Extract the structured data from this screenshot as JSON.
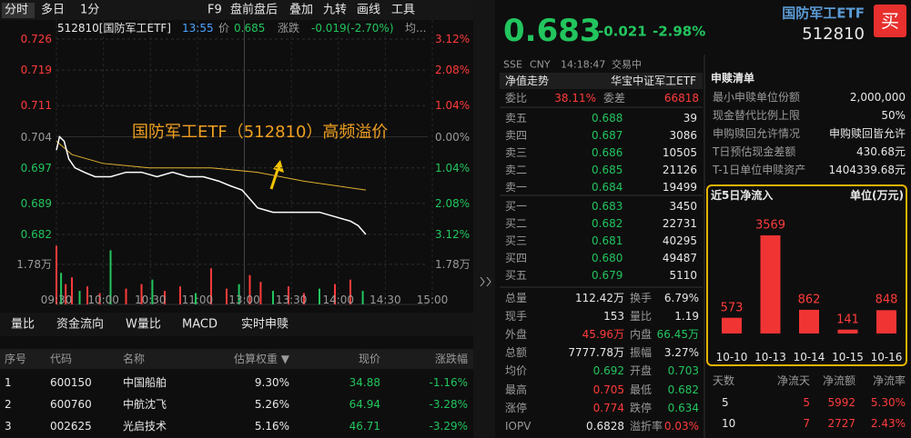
{
  "toolbar": {
    "tabs": [
      "分时",
      "多日",
      "1分"
    ],
    "items": [
      "F9",
      "盘前盘后",
      "叠加",
      "九转",
      "画线",
      "工具"
    ]
  },
  "chart": {
    "info": [
      "512810[国防军工ETF]",
      "13:55",
      "价",
      "0.685",
      "涨跌",
      "-0.019(-2.70%)",
      "均..."
    ],
    "ylim": [
      0.682,
      0.726
    ],
    "yticks": [
      0.726,
      0.719,
      0.711,
      0.704,
      0.697,
      0.689,
      0.682
    ],
    "pct_ticks": [
      "3.12%",
      "2.08%",
      "1.04%",
      "0.00%",
      "1.04%",
      "2.08%",
      "3.12%"
    ],
    "xlim": [
      0,
      240
    ],
    "xticks": [
      "09:30",
      "10:00",
      "10:30",
      "11:00",
      "13:00",
      "13:30",
      "14:00",
      "14:30",
      "15:00"
    ],
    "annotation": "国防军工ETF（512810）高频溢价",
    "price_line": {
      "x": [
        0,
        2,
        5,
        8,
        12,
        18,
        25,
        35,
        45,
        55,
        65,
        75,
        85,
        95,
        105,
        112,
        120,
        125,
        130,
        140,
        150,
        160,
        170,
        180,
        190,
        195,
        200
      ],
      "values": [
        0.701,
        0.704,
        0.703,
        0.699,
        0.697,
        0.696,
        0.695,
        0.695,
        0.696,
        0.696,
        0.695,
        0.696,
        0.695,
        0.695,
        0.694,
        0.693,
        0.692,
        0.69,
        0.688,
        0.687,
        0.687,
        0.687,
        0.687,
        0.686,
        0.685,
        0.684,
        0.682
      ]
    },
    "avg_line": {
      "x": [
        0,
        10,
        30,
        60,
        100,
        130,
        160,
        200
      ],
      "values": [
        0.703,
        0.7,
        0.698,
        0.697,
        0.697,
        0.696,
        0.694,
        0.692
      ]
    },
    "volume": {
      "ylim": [
        0,
        2.7
      ],
      "yticks": [
        {
          "value": 1.78,
          "label": "1.78万"
        }
      ],
      "x": [
        0,
        3,
        6,
        10,
        15,
        20,
        28,
        35,
        45,
        55,
        62,
        70,
        80,
        90,
        100,
        110,
        118,
        125,
        132,
        140,
        150,
        160,
        170,
        180,
        190,
        198
      ],
      "values": [
        2.6,
        1.4,
        0.9,
        1.2,
        0.6,
        0.8,
        0.5,
        2.4,
        0.7,
        0.9,
        1.1,
        0.6,
        0.8,
        0.5,
        1.6,
        0.7,
        0.9,
        1.3,
        1.0,
        0.6,
        0.8,
        0.5,
        0.7,
        0.9,
        1.1,
        0.6
      ]
    }
  },
  "indicator_tabs": [
    "量比",
    "资金流向",
    "W量比",
    "MACD",
    "实时申赎"
  ],
  "holdings": {
    "header": [
      "序号",
      "代码",
      "名称",
      "估算权重 ▼",
      "现价",
      "涨跌幅"
    ],
    "rows": [
      [
        "1",
        "600150",
        "中国船舶",
        "9.30%",
        "34.88",
        "-1.16%"
      ],
      [
        "2",
        "600760",
        "中航沈飞",
        "5.26%",
        "64.94",
        "-3.28%"
      ],
      [
        "3",
        "002625",
        "光启技术",
        "5.16%",
        "46.71",
        "-3.29%"
      ]
    ]
  },
  "quote": {
    "price": "0.683",
    "change": "-0.021",
    "change_pct": "-2.98%",
    "name": "国防军工ETF",
    "code": "512810",
    "buy": "买",
    "status": [
      "SSE",
      "CNY",
      "14:18:47",
      "交易中"
    ]
  },
  "tabs_right": [
    "净值走势",
    "华宝中证军工ETF"
  ],
  "order_book": {
    "ratio": [
      "委比",
      "38.11%",
      "委差",
      "66818"
    ],
    "asks": [
      [
        "卖五",
        "0.688",
        "39"
      ],
      [
        "卖四",
        "0.687",
        "3086"
      ],
      [
        "卖三",
        "0.686",
        "10505"
      ],
      [
        "卖二",
        "0.685",
        "21126"
      ],
      [
        "卖一",
        "0.684",
        "19499"
      ]
    ],
    "bids": [
      [
        "买一",
        "0.683",
        "3450"
      ],
      [
        "买二",
        "0.682",
        "22731"
      ],
      [
        "买三",
        "0.681",
        "40295"
      ],
      [
        "买四",
        "0.680",
        "49487"
      ],
      [
        "买五",
        "0.679",
        "5110"
      ]
    ]
  },
  "stats": [
    [
      "总量",
      "112.42万",
      "换手",
      "6.79%"
    ],
    [
      "现手",
      "153",
      "量比",
      "1.19"
    ],
    [
      "外盘",
      "45.96万",
      "内盘",
      "66.45万"
    ],
    [
      "总额",
      "7777.78万",
      "振幅",
      "3.27%"
    ],
    [
      "均价",
      "0.692",
      "开盘",
      "0.703"
    ],
    [
      "最高",
      "0.705",
      "最低",
      "0.682"
    ],
    [
      "涨停",
      "0.774",
      "跌停",
      "0.634"
    ],
    [
      "IOPV",
      "0.6828",
      "溢折率",
      "0.03%"
    ]
  ],
  "redemption": {
    "title": "申赎清单",
    "rows": [
      [
        "最小申赎单位份额",
        "2,000,000"
      ],
      [
        "现金替代比例上限",
        "50%"
      ],
      [
        "申购赎回允许情况",
        "申购赎回皆允许"
      ],
      [
        "T日预估现金差额",
        "430.68元"
      ],
      [
        "T-1日单位申赎资产",
        "1404339.68元"
      ]
    ]
  },
  "net_inflow": {
    "title": "近5日净流入",
    "unit": "单位(万元)",
    "categories": [
      "10-10",
      "10-13",
      "10-14",
      "10-15",
      "10-16"
    ],
    "values": [
      573,
      3569,
      862,
      141,
      848
    ]
  },
  "flow_table": {
    "header": [
      "天数",
      "净流天",
      "净流额",
      "净流率"
    ],
    "rows": [
      [
        "5",
        "5",
        "5992",
        "5.30%"
      ],
      [
        "10",
        "7",
        "2727",
        "2.43%"
      ]
    ]
  }
}
